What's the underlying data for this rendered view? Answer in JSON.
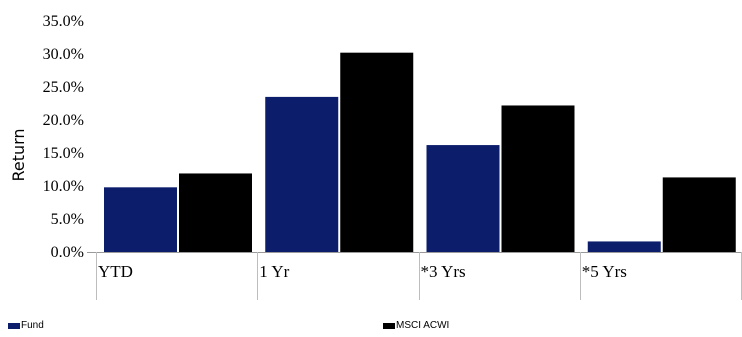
{
  "chart_data": {
    "type": "bar",
    "title": "",
    "xlabel": "",
    "ylabel": "Return",
    "categories": [
      "YTD",
      "1 Yr",
      "*3 Yrs",
      "*5 Yrs"
    ],
    "series": [
      {
        "name": "Fund",
        "color": "#0b1d6b",
        "values": [
          9.8,
          23.5,
          16.2,
          1.6
        ]
      },
      {
        "name": "MSCI ACWI",
        "color": "#000000",
        "values": [
          11.9,
          30.2,
          22.2,
          11.3
        ]
      }
    ],
    "ylim": [
      0,
      35
    ],
    "yticks": [
      "0.0%",
      "5.0%",
      "10.0%",
      "15.0%",
      "20.0%",
      "25.0%",
      "30.0%",
      "35.0%"
    ],
    "legend_position": "bottom",
    "grid": false
  }
}
